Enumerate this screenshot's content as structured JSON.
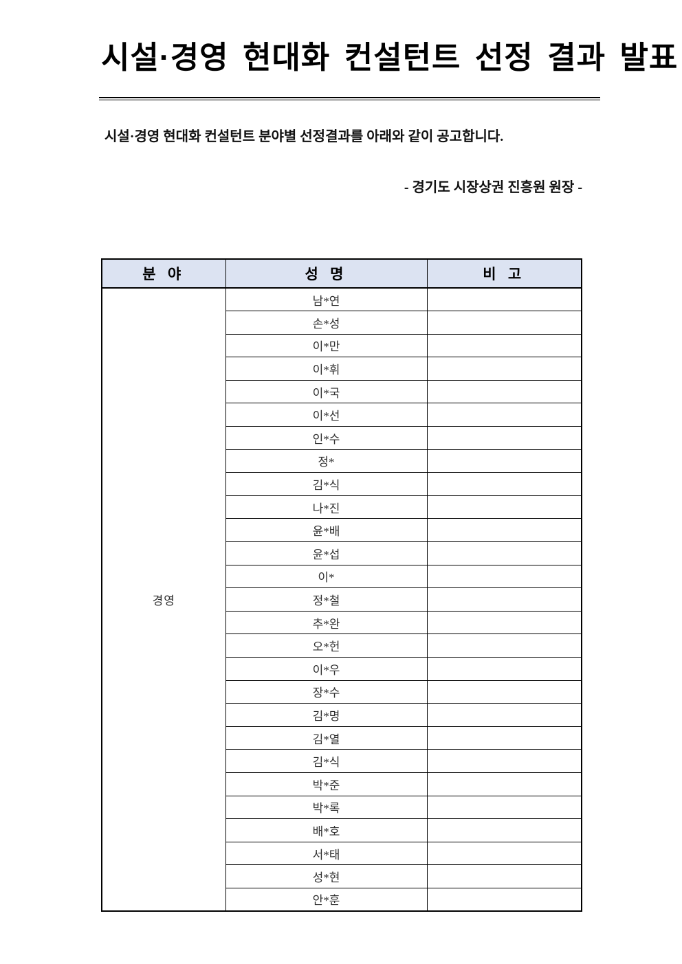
{
  "document": {
    "title": "시설·경영 현대화 컨설턴트 선정 결과 발표",
    "intro": "시설·경영 현대화 컨설턴트 분야별 선정결과를 아래와 같이 공고합니다.",
    "signature": "-  경기도 시장상권 진흥원 원장 -"
  },
  "table": {
    "headers": [
      "분 야",
      "성 명",
      "비 고"
    ],
    "category": "경영",
    "rows": [
      {
        "name": "남*연",
        "note": ""
      },
      {
        "name": "손*성",
        "note": ""
      },
      {
        "name": "이*만",
        "note": ""
      },
      {
        "name": "이*휘",
        "note": ""
      },
      {
        "name": "이*국",
        "note": ""
      },
      {
        "name": "이*선",
        "note": ""
      },
      {
        "name": "인*수",
        "note": ""
      },
      {
        "name": "정*",
        "note": ""
      },
      {
        "name": "김*식",
        "note": ""
      },
      {
        "name": "나*진",
        "note": ""
      },
      {
        "name": "윤*배",
        "note": ""
      },
      {
        "name": "윤*섭",
        "note": ""
      },
      {
        "name": "이*",
        "note": ""
      },
      {
        "name": "정*철",
        "note": ""
      },
      {
        "name": "추*완",
        "note": ""
      },
      {
        "name": "오*헌",
        "note": ""
      },
      {
        "name": "이*우",
        "note": ""
      },
      {
        "name": "장*수",
        "note": ""
      },
      {
        "name": "김*명",
        "note": ""
      },
      {
        "name": "김*열",
        "note": ""
      },
      {
        "name": "김*식",
        "note": ""
      },
      {
        "name": "박*준",
        "note": ""
      },
      {
        "name": "박*록",
        "note": ""
      },
      {
        "name": "배*호",
        "note": ""
      },
      {
        "name": "서*태",
        "note": ""
      },
      {
        "name": "성*현",
        "note": ""
      },
      {
        "name": "안*훈",
        "note": ""
      }
    ]
  },
  "colors": {
    "header_bg": "#dce3f2",
    "border": "#000000",
    "text": "#1a1a1a"
  }
}
